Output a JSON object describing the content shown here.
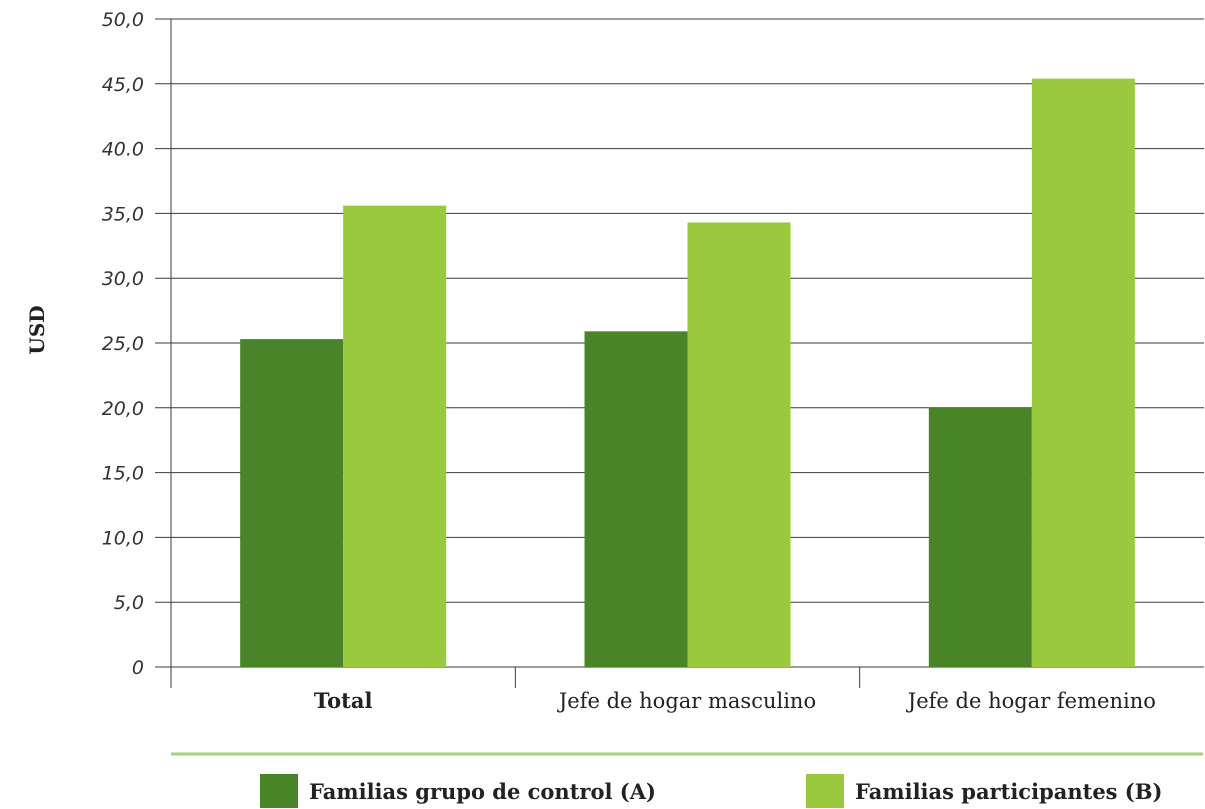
{
  "chart_data": {
    "type": "bar",
    "categories": [
      "Total",
      "Jefe de hogar masculino",
      "Jefe de hogar femenino"
    ],
    "emphasized_category": "Total",
    "series": [
      {
        "name": "Familias grupo de control (A)",
        "values": [
          25.3,
          25.9,
          20.0
        ],
        "color": "#4a8429"
      },
      {
        "name": "Familias participantes (B)",
        "values": [
          35.6,
          34.3,
          45.4
        ],
        "color": "#9bc93e"
      }
    ],
    "ylabel": "USD",
    "ylim": [
      0,
      50
    ],
    "yticks": [
      "0",
      "5,0",
      "10,0",
      "15,0",
      "20,0",
      "25,0",
      "30,0",
      "35,0",
      "40.0",
      "45,0",
      "50,0"
    ],
    "grid": true,
    "legend_position": "bottom",
    "legend_separator_color": "#a6d27e"
  }
}
